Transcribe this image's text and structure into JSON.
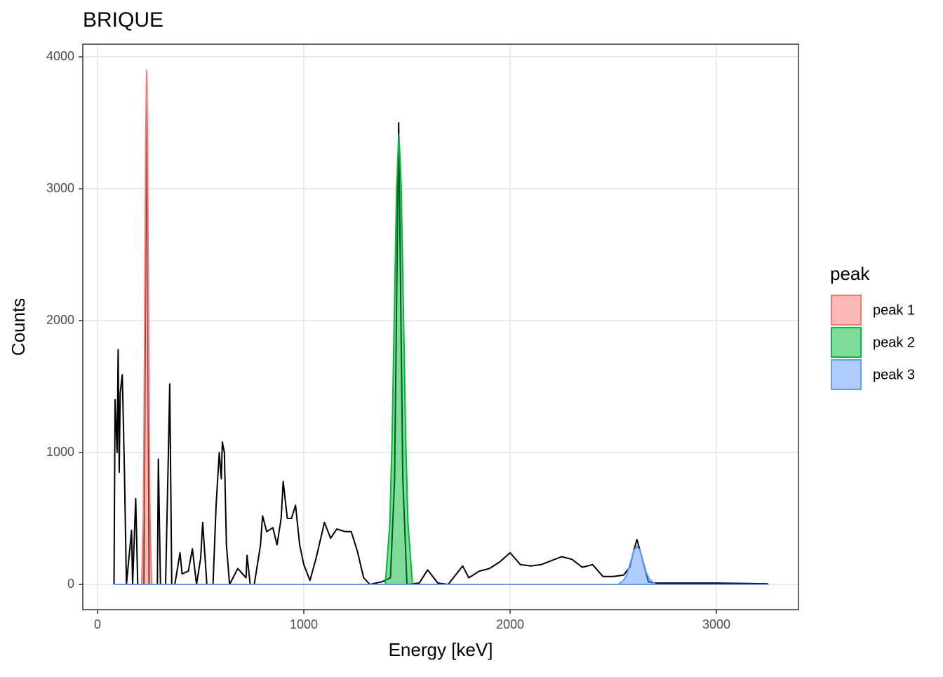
{
  "chart_data": {
    "type": "line",
    "title": "BRIQUE",
    "x_label": "Energy [keV]",
    "y_label": "Counts",
    "xlim": [
      -71.4,
      3398
    ],
    "ylim": [
      -191.5,
      4096
    ],
    "xticks": [
      0,
      1000,
      2000,
      3000
    ],
    "yticks": [
      0,
      1000,
      2000,
      3000,
      4000
    ],
    "grid": true,
    "legend_title": "peak",
    "legend_position": "right",
    "series": [
      {
        "color": "#000000",
        "kind": "line",
        "x": [
          80,
          85,
          95,
          100,
          105,
          110,
          120,
          130,
          140,
          165,
          170,
          185,
          195,
          225,
          238,
          250,
          290,
          295,
          305,
          330,
          345,
          350,
          360,
          375,
          400,
          410,
          440,
          460,
          480,
          500,
          510,
          530,
          560,
          575,
          590,
          600,
          605,
          615,
          625,
          640,
          680,
          720,
          725,
          740,
          760,
          790,
          800,
          820,
          850,
          870,
          890,
          900,
          920,
          940,
          960,
          980,
          1000,
          1030,
          1060,
          1100,
          1130,
          1160,
          1200,
          1230,
          1260,
          1290,
          1320,
          1380,
          1420,
          1440,
          1460,
          1480,
          1500,
          1560,
          1600,
          1650,
          1700,
          1750,
          1770,
          1800,
          1850,
          1900,
          1950,
          2000,
          2050,
          2100,
          2150,
          2200,
          2250,
          2300,
          2350,
          2400,
          2450,
          2500,
          2550,
          2580,
          2600,
          2615,
          2640,
          2670,
          2700,
          3000,
          3250
        ],
        "values": [
          0,
          1400,
          1000,
          1780,
          850,
          1450,
          1590,
          900,
          0,
          410,
          0,
          650,
          0,
          0,
          3880,
          0,
          0,
          950,
          0,
          0,
          1100,
          1520,
          0,
          0,
          240,
          80,
          100,
          270,
          0,
          200,
          470,
          0,
          0,
          600,
          1000,
          800,
          1080,
          1000,
          300,
          0,
          120,
          50,
          220,
          0,
          0,
          300,
          520,
          400,
          430,
          300,
          500,
          780,
          500,
          500,
          600,
          300,
          150,
          30,
          200,
          470,
          350,
          420,
          400,
          400,
          250,
          50,
          0,
          20,
          50,
          800,
          3500,
          800,
          0,
          10,
          110,
          10,
          0,
          100,
          140,
          50,
          100,
          120,
          170,
          240,
          150,
          140,
          150,
          180,
          210,
          190,
          130,
          150,
          60,
          60,
          70,
          130,
          260,
          340,
          200,
          20,
          10,
          10,
          5
        ]
      },
      {
        "name": "peak 1",
        "color": "#F8766D",
        "kind": "area",
        "x": [
          214,
          222,
          226,
          230,
          234,
          238,
          242,
          246,
          250,
          254,
          262
        ],
        "values": [
          0,
          530,
          1270,
          2370,
          3440,
          3900,
          3440,
          2370,
          1270,
          530,
          0
        ]
      },
      {
        "name": "peak 2",
        "color": "#00BA38",
        "kind": "area",
        "x": [
          1395,
          1417,
          1428,
          1439,
          1450,
          1461,
          1472,
          1483,
          1494,
          1505,
          1527
        ],
        "values": [
          0,
          460,
          1110,
          2080,
          3020,
          3420,
          3020,
          2080,
          1110,
          460,
          0
        ]
      },
      {
        "name": "peak 3",
        "color": "#619CFF",
        "kind": "area",
        "x": [
          80,
          2525,
          2555,
          2570,
          2585,
          2600,
          2615,
          2630,
          2645,
          2660,
          2675,
          2705,
          3250
        ],
        "values": [
          0,
          0,
          39,
          94,
          176,
          256,
          290,
          256,
          176,
          94,
          39,
          0,
          0
        ]
      }
    ]
  }
}
